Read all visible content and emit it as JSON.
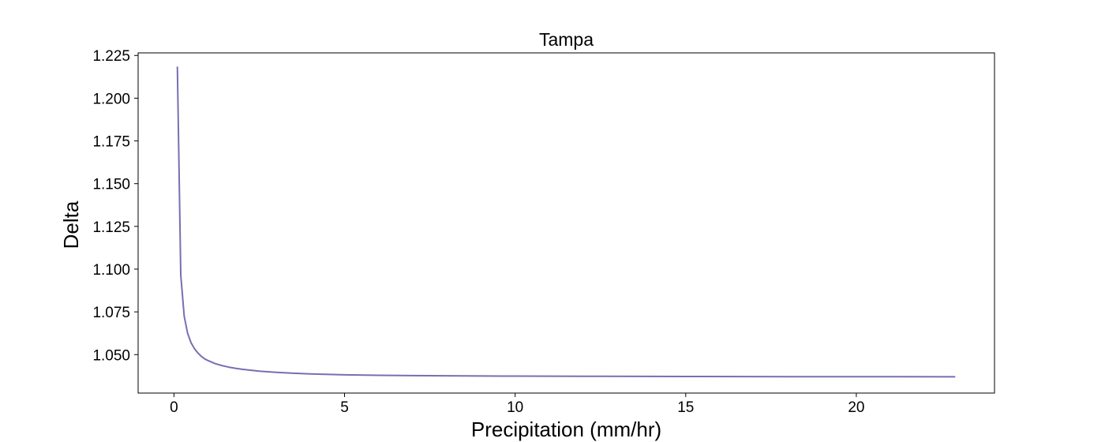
{
  "chart_data": {
    "type": "line",
    "title": "Tampa",
    "xlabel": "Precipitation (mm/hr)",
    "ylabel": "Delta",
    "xlim": [
      -1.05,
      24.05
    ],
    "ylim": [
      1.0275,
      1.2265
    ],
    "xticks": [
      0,
      5,
      10,
      15,
      20
    ],
    "xtick_labels": [
      "0",
      "5",
      "10",
      "15",
      "20"
    ],
    "yticks": [
      1.05,
      1.075,
      1.1,
      1.125,
      1.15,
      1.175,
      1.2,
      1.225
    ],
    "ytick_labels": [
      "1.050",
      "1.075",
      "1.100",
      "1.125",
      "1.150",
      "1.175",
      "1.200",
      "1.225"
    ],
    "grid": false,
    "series": [
      {
        "color": "#7570b3",
        "x": [
          0.1,
          0.2,
          0.3,
          0.4,
          0.5,
          0.6,
          0.7,
          0.8,
          0.9,
          1.0,
          1.2,
          1.4,
          1.6,
          1.8,
          2.0,
          2.5,
          3.0,
          3.5,
          4.0,
          5.0,
          6.0,
          7.0,
          8.0,
          10.0,
          12.0,
          15.0,
          18.0,
          20.0,
          22.9
        ],
        "y": [
          1.2185,
          1.0965,
          1.0725,
          1.0625,
          1.057,
          1.0535,
          1.051,
          1.049,
          1.0475,
          1.0465,
          1.0448,
          1.0436,
          1.0427,
          1.042,
          1.0414,
          1.0403,
          1.0396,
          1.0391,
          1.0387,
          1.0382,
          1.0379,
          1.0377,
          1.0376,
          1.0374,
          1.0373,
          1.0372,
          1.0371,
          1.0371,
          1.037
        ]
      }
    ]
  }
}
